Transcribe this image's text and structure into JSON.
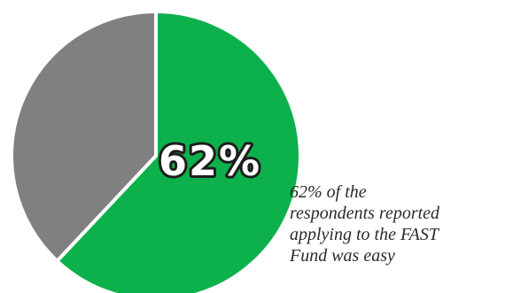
{
  "chart_data": {
    "type": "pie",
    "slices": [
      {
        "value": 62,
        "color": "#0db14b"
      },
      {
        "value": 38,
        "color": "#808080"
      }
    ],
    "center_label": "62%",
    "annotation": "62% of the\nrespondents reported\napplying to the FAST\nFund was easy"
  },
  "colors": {
    "label_fill": "#ffffff",
    "label_stroke": "#1d1d1d",
    "slice_border": "#ffffff"
  }
}
